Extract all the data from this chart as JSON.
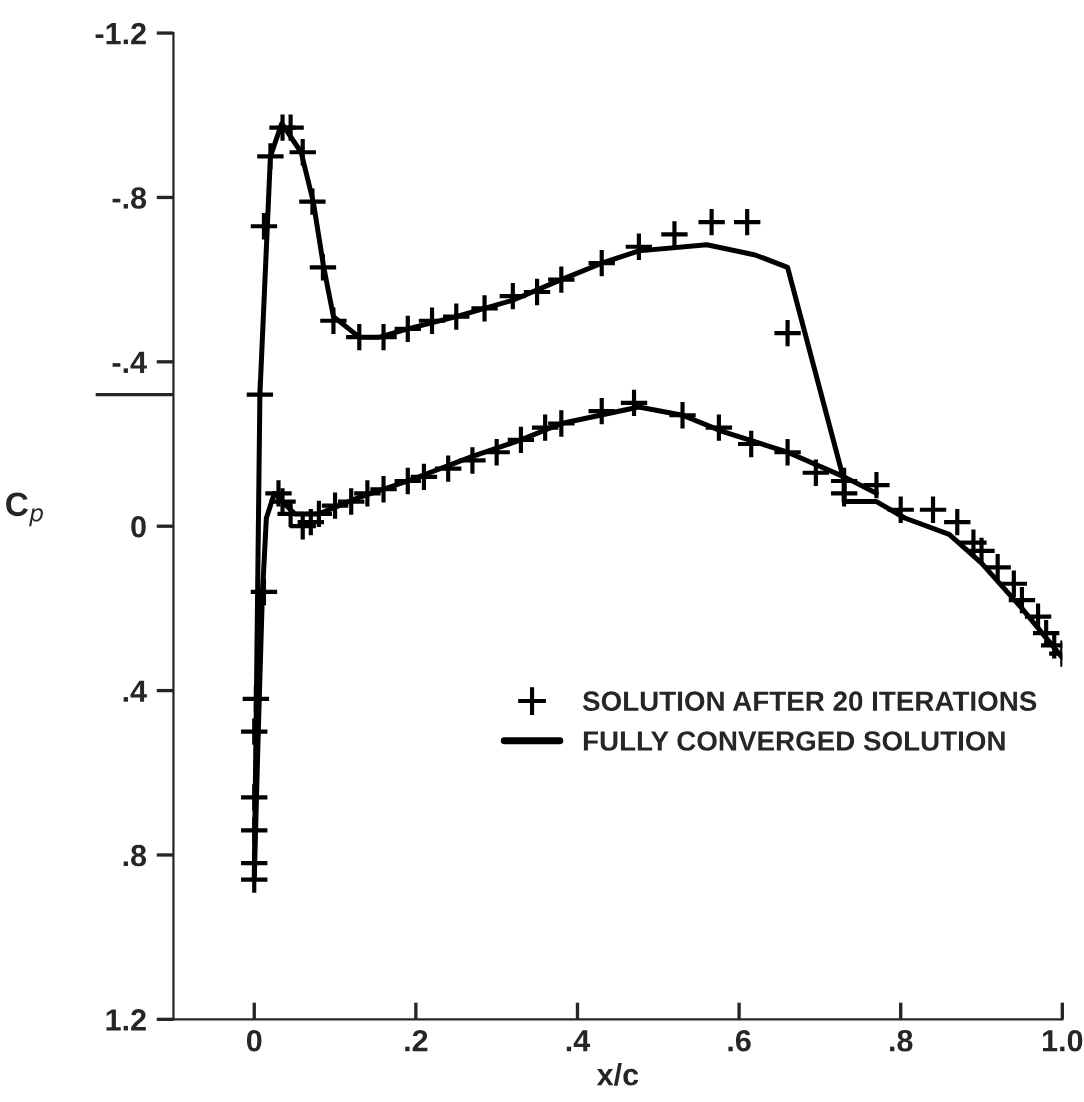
{
  "chart_data": {
    "type": "line",
    "xlabel": "x/c",
    "ylabel": "C$_{p}$",
    "xlim": [
      -0.1,
      1.0
    ],
    "ylim": [
      1.2,
      -1.2
    ],
    "xticks": [
      {
        "value": 0,
        "label": "0"
      },
      {
        "value": 0.2,
        "label": ".2"
      },
      {
        "value": 0.4,
        "label": ".4"
      },
      {
        "value": 0.6,
        "label": ".6"
      },
      {
        "value": 0.8,
        "label": ".8"
      },
      {
        "value": 1.0,
        "label": "1.0"
      }
    ],
    "yticks": [
      {
        "value": -1.2,
        "label": "-1.2"
      },
      {
        "value": -0.8,
        "label": "-.8"
      },
      {
        "value": -0.4,
        "label": "-.4"
      },
      {
        "value": -0.32,
        "label": null
      },
      {
        "value": 0,
        "label": "0"
      },
      {
        "value": 0.4,
        "label": ".4"
      },
      {
        "value": 0.8,
        "label": ".8"
      },
      {
        "value": 1.2,
        "label": "1.2"
      }
    ],
    "grid": false,
    "legend": "right",
    "series": [
      {
        "name": "SOLUTION AFTER 20 ITERATIONS",
        "type": "scatter",
        "marker": "cross",
        "color": "#000000",
        "x": [
          0.007,
          0.012,
          0.02,
          0.035,
          0.045,
          0.06,
          0.072,
          0.085,
          0.098,
          0.13,
          0.16,
          0.19,
          0.22,
          0.25,
          0.285,
          0.32,
          0.35,
          0.38,
          0.43,
          0.476,
          0.52,
          0.566,
          0.61,
          0.66,
          0.0,
          0.0,
          0.0,
          0.0,
          0.0,
          0.002,
          0.012,
          0.03,
          0.035,
          0.045,
          0.06,
          0.07,
          0.08,
          0.1,
          0.12,
          0.14,
          0.16,
          0.19,
          0.21,
          0.24,
          0.27,
          0.3,
          0.33,
          0.36,
          0.38,
          0.43,
          0.47,
          0.53,
          0.575,
          0.615,
          0.66,
          0.695,
          0.73,
          0.73,
          0.77,
          0.8,
          0.84,
          0.87,
          0.89,
          0.9,
          0.92,
          0.94,
          0.95,
          0.97,
          0.98,
          0.99,
          1.0
        ],
        "values": [
          -0.32,
          -0.73,
          -0.9,
          -0.97,
          -0.97,
          -0.91,
          -0.79,
          -0.63,
          -0.5,
          -0.46,
          -0.46,
          -0.48,
          -0.5,
          -0.51,
          -0.53,
          -0.56,
          -0.57,
          -0.6,
          -0.64,
          -0.68,
          -0.71,
          -0.74,
          -0.74,
          -0.47,
          0.86,
          0.82,
          0.74,
          0.66,
          0.5,
          0.42,
          0.16,
          -0.08,
          -0.06,
          -0.03,
          0.0,
          -0.01,
          -0.03,
          -0.05,
          -0.06,
          -0.08,
          -0.09,
          -0.11,
          -0.12,
          -0.14,
          -0.16,
          -0.18,
          -0.21,
          -0.24,
          -0.25,
          -0.28,
          -0.3,
          -0.27,
          -0.24,
          -0.2,
          -0.18,
          -0.13,
          -0.11,
          -0.08,
          -0.1,
          -0.04,
          -0.04,
          -0.01,
          0.04,
          0.06,
          0.1,
          0.14,
          0.18,
          0.22,
          0.26,
          0.29,
          0.31
        ]
      },
      {
        "name": "FULLY CONVERGED SOLUTION",
        "marker": "none",
        "line_style": "solid",
        "color": "#000000",
        "x": [
          1.0,
          0.95,
          0.9,
          0.86,
          0.805,
          0.77,
          0.73,
          0.73,
          0.66,
          0.62,
          0.56,
          0.476,
          0.43,
          0.38,
          0.32,
          0.25,
          0.19,
          0.155,
          0.13,
          0.098,
          0.086,
          0.073,
          0.058,
          0.034,
          0.02,
          0.007,
          0.0,
          0.005,
          0.01,
          0.015,
          0.025,
          0.05,
          0.08,
          0.13,
          0.19,
          0.27,
          0.33,
          0.38,
          0.476,
          0.53,
          0.58,
          0.66,
          0.73,
          0.77
        ],
        "values": [
          0.32,
          0.2,
          0.09,
          0.02,
          -0.02,
          -0.06,
          -0.06,
          -0.11,
          -0.63,
          -0.66,
          -0.685,
          -0.67,
          -0.64,
          -0.6,
          -0.55,
          -0.51,
          -0.48,
          -0.46,
          -0.46,
          -0.51,
          -0.63,
          -0.79,
          -0.91,
          -0.98,
          -0.9,
          -0.32,
          0.86,
          0.5,
          0.17,
          -0.02,
          -0.08,
          -0.03,
          -0.03,
          -0.07,
          -0.11,
          -0.17,
          -0.21,
          -0.25,
          -0.29,
          -0.27,
          -0.23,
          -0.18,
          -0.12,
          -0.08
        ]
      }
    ]
  }
}
